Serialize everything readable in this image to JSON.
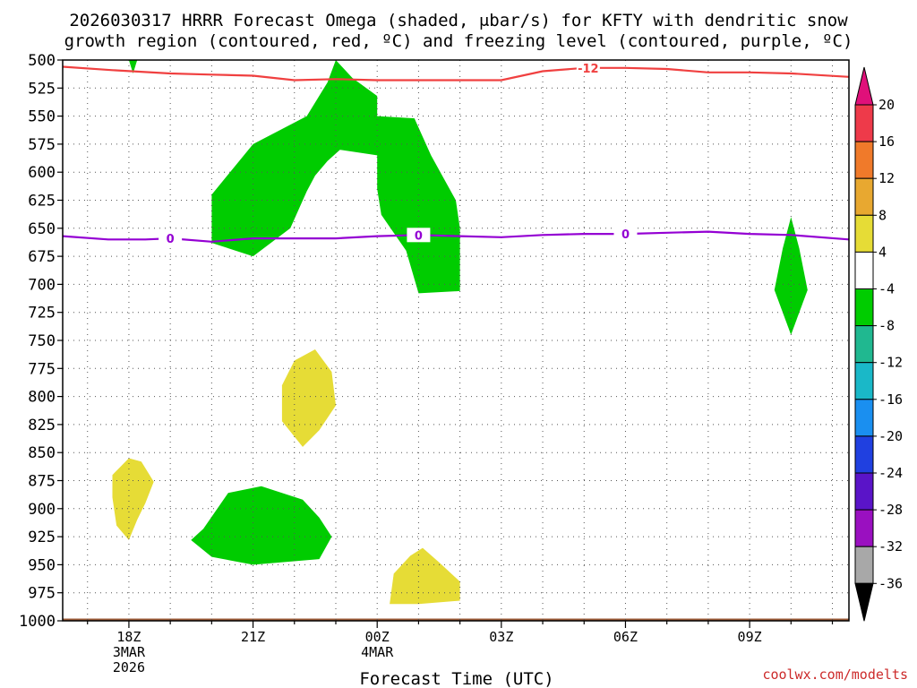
{
  "title_line1": "2026030317 HRRR Forecast Omega (shaded, μbar/s) for KFTY with dendritic snow",
  "title_line2": "growth region (contoured, red, ºC) and freezing level (contoured, purple, ºC)",
  "credit": "coolwx.com/modelts",
  "chart_data": {
    "type": "heatmap",
    "xlabel": "Forecast Time (UTC)",
    "ylabel": "",
    "y_unit": "hPa",
    "y_inverted": true,
    "ylim": [
      1000,
      500
    ],
    "xlim": [
      16.4,
      35.4
    ],
    "grid": true,
    "y_ticks": [
      500,
      525,
      550,
      575,
      600,
      625,
      650,
      675,
      700,
      725,
      750,
      775,
      800,
      825,
      850,
      875,
      900,
      925,
      950,
      975,
      1000
    ],
    "x_ticks": [
      {
        "hour": 18,
        "lines": [
          "18Z",
          "3MAR",
          "2026"
        ]
      },
      {
        "hour": 21,
        "lines": [
          "21Z"
        ]
      },
      {
        "hour": 24,
        "lines": [
          "00Z",
          "4MAR"
        ]
      },
      {
        "hour": 27,
        "lines": [
          "03Z"
        ]
      },
      {
        "hour": 30,
        "lines": [
          "06Z"
        ]
      },
      {
        "hour": 33,
        "lines": [
          "09Z"
        ]
      }
    ],
    "colorbar": {
      "labels": [
        "20",
        "16",
        "12",
        "8",
        "4",
        "-4",
        "-8",
        "-12",
        "-16",
        "-20",
        "-24",
        "-28",
        "-32",
        "-36"
      ],
      "colors": [
        "#ee3a4a",
        "#f07a2a",
        "#e8a830",
        "#e6dc36",
        "#ffffff",
        "#00cc00",
        "#20b890",
        "#1ab8c8",
        "#1a8ff0",
        "#2040e0",
        "#5a14c8",
        "#9a10c0",
        "#a8a8a8"
      ],
      "top_arrow_color": "#e0107a",
      "bottom_arrow_color": "#000000"
    },
    "shaded_regions": [
      {
        "range": "-8 to -4",
        "color": "#00cc00",
        "points": [
          [
            18.0,
            500
          ],
          [
            18.2,
            500
          ],
          [
            18.1,
            512
          ]
        ]
      },
      {
        "range": "-8 to -4",
        "color": "#00cc00",
        "points": [
          [
            23.0,
            500
          ],
          [
            23.4,
            516
          ],
          [
            24.0,
            532
          ],
          [
            24.0,
            550
          ],
          [
            24.9,
            552
          ],
          [
            25.3,
            585
          ],
          [
            25.9,
            625
          ],
          [
            26.0,
            650
          ],
          [
            26.0,
            706
          ],
          [
            25.0,
            708
          ],
          [
            24.7,
            670
          ],
          [
            24.1,
            638
          ],
          [
            24.0,
            615
          ],
          [
            24.0,
            585
          ],
          [
            23.1,
            580
          ],
          [
            22.8,
            590
          ],
          [
            22.5,
            603
          ],
          [
            22.3,
            617
          ],
          [
            21.9,
            650
          ],
          [
            21.0,
            675
          ],
          [
            20.0,
            663
          ],
          [
            20.0,
            620
          ],
          [
            21.0,
            575
          ],
          [
            22.3,
            550
          ],
          [
            22.8,
            520
          ]
        ]
      },
      {
        "range": "-8 to -4",
        "color": "#00cc00",
        "points": [
          [
            33.8,
            668
          ],
          [
            34.0,
            640
          ],
          [
            34.2,
            668
          ],
          [
            34.4,
            705
          ],
          [
            34.0,
            745
          ],
          [
            33.6,
            705
          ]
        ]
      },
      {
        "range": "-8 to -4",
        "color": "#00cc00",
        "points": [
          [
            19.8,
            918
          ],
          [
            20.4,
            886
          ],
          [
            21.2,
            880
          ],
          [
            22.2,
            892
          ],
          [
            22.6,
            908
          ],
          [
            22.9,
            925
          ],
          [
            22.6,
            945
          ],
          [
            21.0,
            950
          ],
          [
            20.0,
            943
          ],
          [
            19.5,
            928
          ]
        ]
      },
      {
        "range": "4 to 8",
        "color": "#e6dc36",
        "points": [
          [
            22.0,
            768
          ],
          [
            22.5,
            758
          ],
          [
            22.9,
            778
          ],
          [
            23.0,
            808
          ],
          [
            22.6,
            830
          ],
          [
            22.2,
            845
          ],
          [
            21.7,
            822
          ],
          [
            21.7,
            790
          ]
        ]
      },
      {
        "range": "4 to 8",
        "color": "#e6dc36",
        "points": [
          [
            17.6,
            870
          ],
          [
            18.0,
            855
          ],
          [
            18.3,
            858
          ],
          [
            18.6,
            876
          ],
          [
            18.4,
            895
          ],
          [
            18.2,
            910
          ],
          [
            18.0,
            928
          ],
          [
            17.7,
            915
          ],
          [
            17.6,
            890
          ]
        ]
      },
      {
        "range": "4 to 8",
        "color": "#e6dc36",
        "points": [
          [
            24.4,
            958
          ],
          [
            24.8,
            942
          ],
          [
            25.1,
            935
          ],
          [
            25.5,
            948
          ],
          [
            26.0,
            965
          ],
          [
            26.0,
            982
          ],
          [
            25.0,
            985
          ],
          [
            24.3,
            985
          ]
        ]
      }
    ],
    "terrain": {
      "color": "#9b5a36",
      "points": [
        [
          16.4,
          998
        ],
        [
          35.4,
          998
        ],
        [
          35.4,
          1000
        ],
        [
          16.4,
          1000
        ]
      ]
    },
    "contours": [
      {
        "name": "dendritic snow growth region",
        "level": "-12",
        "color": "#f04040",
        "points": [
          [
            16.4,
            506
          ],
          [
            17.6,
            509
          ],
          [
            19.0,
            512
          ],
          [
            20.0,
            513
          ],
          [
            21.0,
            514
          ],
          [
            22.0,
            518
          ],
          [
            23.0,
            517
          ],
          [
            24.0,
            518
          ],
          [
            25.0,
            518
          ],
          [
            26.0,
            518
          ],
          [
            27.0,
            518
          ],
          [
            28.0,
            510
          ],
          [
            29.0,
            507
          ],
          [
            30.0,
            507
          ],
          [
            31.0,
            508
          ],
          [
            32.0,
            511
          ],
          [
            33.0,
            511
          ],
          [
            34.0,
            512
          ],
          [
            35.4,
            515
          ]
        ],
        "label_at": 29.1
      },
      {
        "name": "freezing level",
        "level": "0",
        "color": "#9400d3",
        "points": [
          [
            16.4,
            657
          ],
          [
            17.5,
            660
          ],
          [
            18.4,
            660
          ],
          [
            19.0,
            659
          ],
          [
            20.0,
            662
          ],
          [
            21.0,
            659
          ],
          [
            22.0,
            659
          ],
          [
            23.0,
            659
          ],
          [
            24.0,
            657
          ],
          [
            25.0,
            656
          ],
          [
            26.0,
            657
          ],
          [
            27.0,
            658
          ],
          [
            28.0,
            656
          ],
          [
            29.0,
            655
          ],
          [
            30.0,
            655
          ],
          [
            31.0,
            654
          ],
          [
            32.0,
            653
          ],
          [
            33.0,
            655
          ],
          [
            34.0,
            656
          ],
          [
            35.4,
            660
          ]
        ],
        "label_at": [
          19.0,
          25.0,
          30.0
        ]
      }
    ]
  }
}
